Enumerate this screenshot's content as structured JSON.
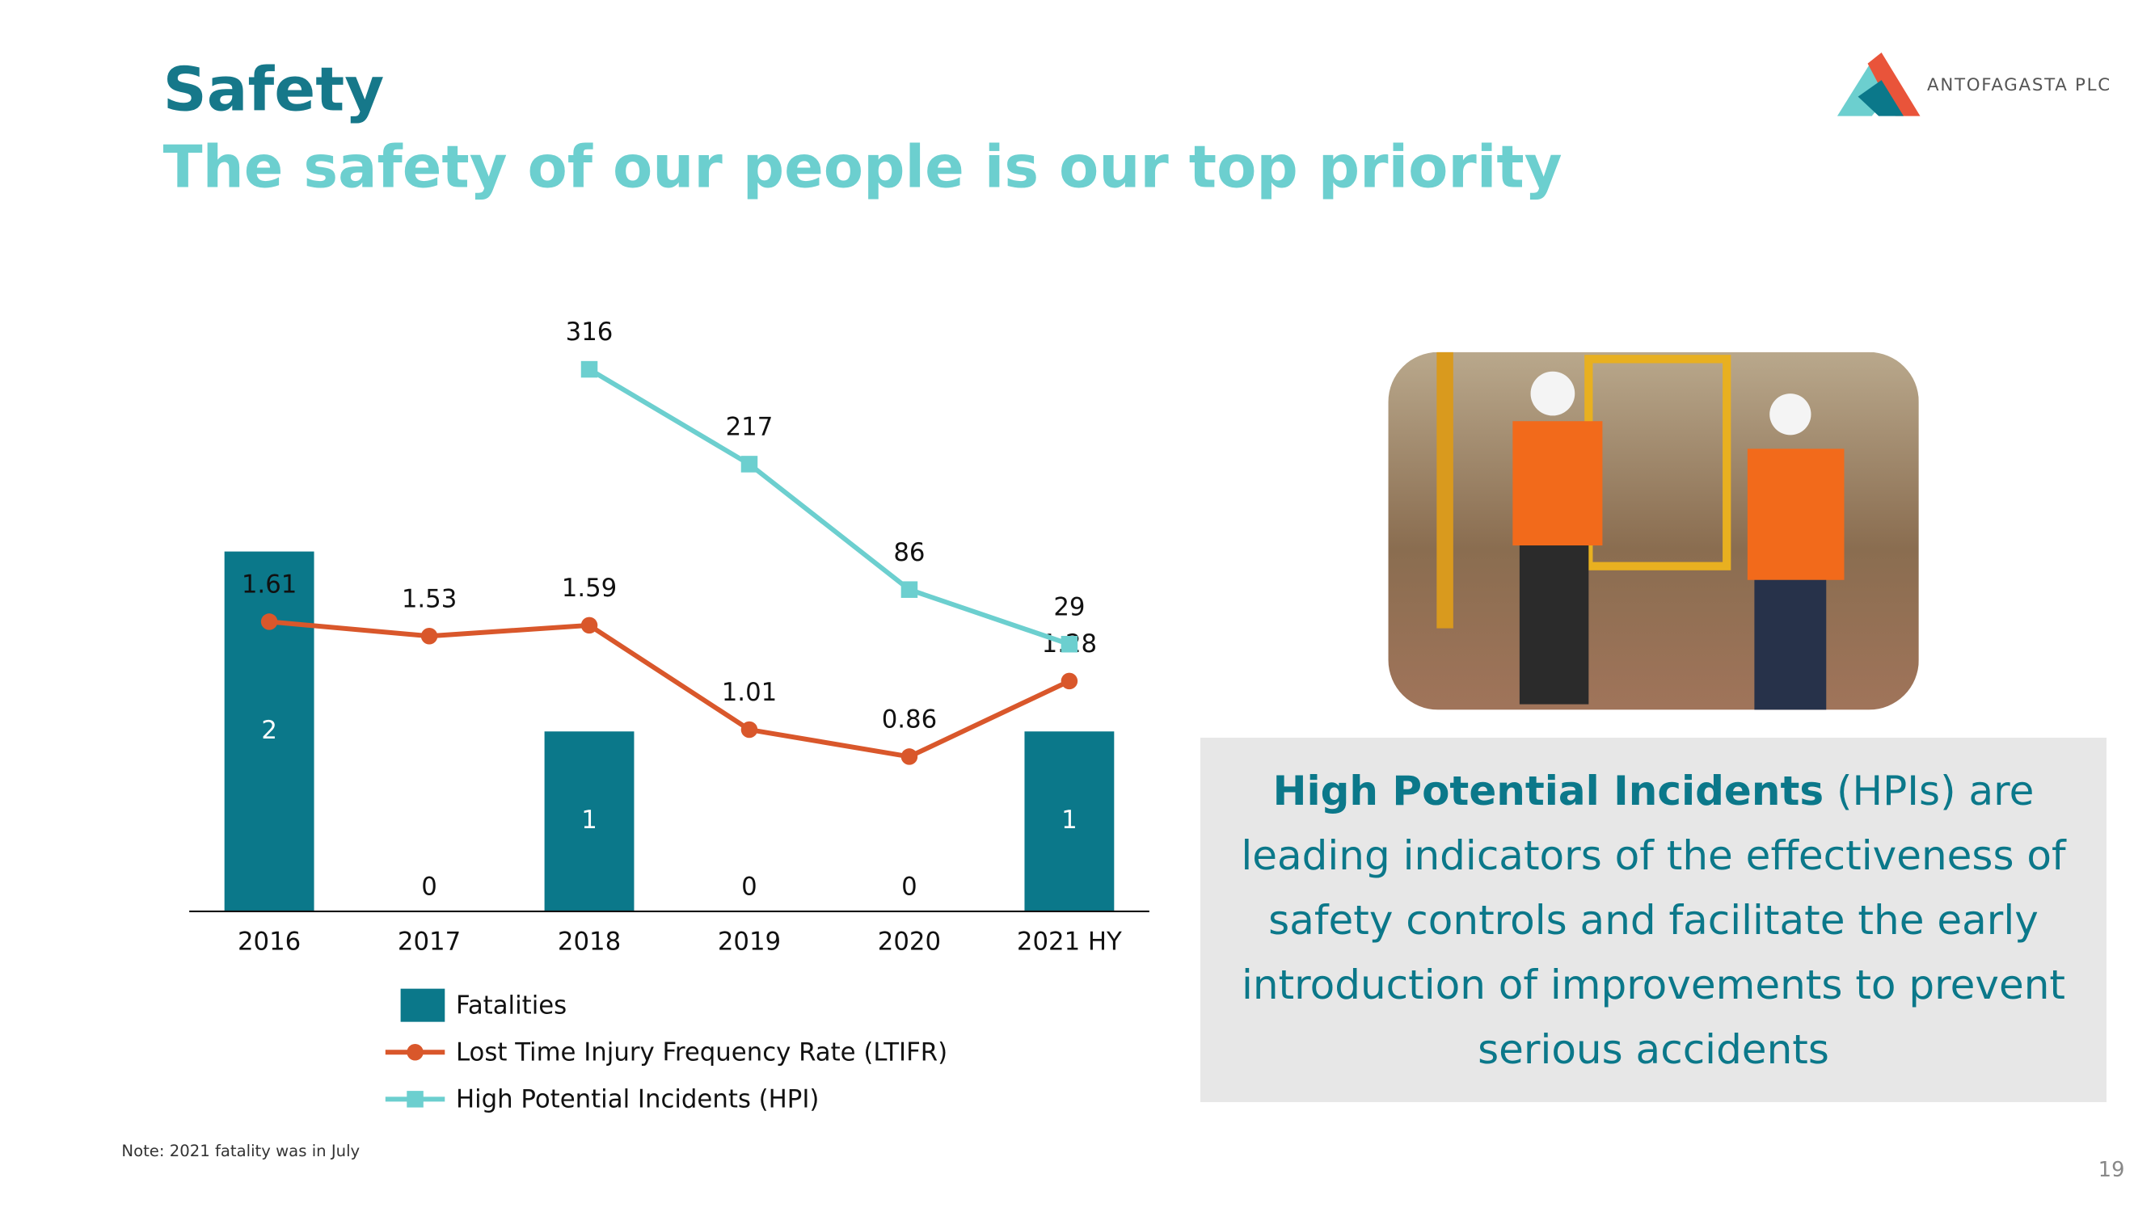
{
  "slide": {
    "title": "Safety",
    "subtitle": "The safety of our people is our top priority",
    "logo": "ANTOFAGASTA PLC",
    "note": "Note: 2021 fatality was in July",
    "page_number": "19",
    "callout": {
      "bold": "High Potential Incidents",
      "text": "(HPIs) are leading indicators of the effectiveness of safety controls and facilitate the early introduction of improvements to prevent serious accidents"
    }
  },
  "chart_data": {
    "type": "bar",
    "categories": [
      "2016",
      "2017",
      "2018",
      "2019",
      "2020",
      "2021 HY"
    ],
    "ylim": [
      0,
      3.3
    ],
    "y2lim": [
      -250,
      370
    ],
    "series": [
      {
        "name": "Fatalities",
        "type": "bar",
        "color": "#0b788a",
        "values": [
          2,
          0,
          1,
          0,
          0,
          1
        ]
      },
      {
        "name": "Lost Time Injury Frequency Rate (LTIFR)",
        "type": "line",
        "color": "#d9572b",
        "values": [
          1.61,
          1.53,
          1.59,
          1.01,
          0.86,
          1.28
        ]
      },
      {
        "name": "High Potential Incidents (HPI)",
        "type": "line",
        "color": "#6ccfcf",
        "axis": "y2",
        "values": [
          null,
          null,
          316,
          217,
          86,
          29
        ]
      }
    ]
  }
}
